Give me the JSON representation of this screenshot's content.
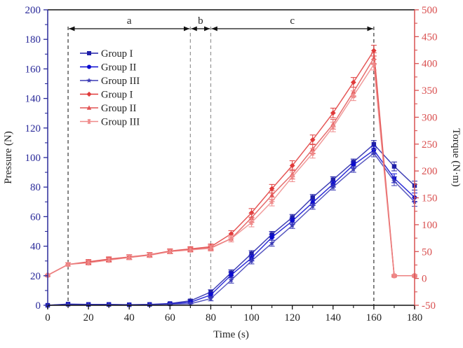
{
  "chart_data": {
    "type": "line",
    "title": "",
    "xlabel": "Time (s)",
    "ylabel_left": "Pressure (N)",
    "ylabel_right": "Torque (N·m)",
    "xlim": [
      0,
      180
    ],
    "xticks": [
      0,
      20,
      40,
      60,
      80,
      100,
      120,
      140,
      160,
      180
    ],
    "ylim_left": [
      0,
      200
    ],
    "yticks_left": [
      0,
      20,
      40,
      60,
      80,
      100,
      120,
      140,
      160,
      180,
      200
    ],
    "ylim_right": [
      -50,
      500
    ],
    "yticks_right": [
      -50,
      0,
      50,
      100,
      150,
      200,
      250,
      300,
      350,
      400,
      450,
      500
    ],
    "grid": false,
    "legend_position": "top-left",
    "colors": {
      "left_axis": "#2a2a9a",
      "right_axis": "#d95050",
      "vline": "#555555"
    },
    "phases": [
      {
        "label": "a",
        "from": 10,
        "to": 70
      },
      {
        "label": "b",
        "from": 70,
        "to": 80
      },
      {
        "label": "c",
        "from": 80,
        "to": 160
      }
    ],
    "vlines": [
      10,
      70,
      80,
      160
    ],
    "x": [
      0,
      10,
      20,
      30,
      40,
      50,
      60,
      70,
      80,
      90,
      100,
      110,
      120,
      130,
      140,
      150,
      160,
      170,
      180
    ],
    "series": [
      {
        "name": "Group I",
        "axis": "left",
        "quantity": "Pressure",
        "marker": "square",
        "color": "#1f1fa8",
        "values": [
          0,
          0.8,
          0.6,
          0.6,
          0.4,
          0.6,
          1.2,
          3,
          9,
          22,
          35,
          48,
          59.5,
          73,
          85,
          97,
          109,
          94,
          81
        ],
        "errors": [
          0.3,
          0.4,
          0.4,
          0.4,
          0.3,
          0.4,
          0.5,
          1,
          1.5,
          2,
          2,
          2,
          2,
          2,
          2,
          2,
          2.5,
          3,
          3
        ]
      },
      {
        "name": "Group II",
        "axis": "left",
        "quantity": "Pressure",
        "marker": "circle",
        "color": "#0a0ad0",
        "values": [
          0,
          0.6,
          0.5,
          0.5,
          0.3,
          0.5,
          1,
          2,
          7,
          20.5,
          32,
          46,
          57,
          69.5,
          82,
          95,
          105,
          86,
          73
        ],
        "errors": [
          0.3,
          0.4,
          0.4,
          0.4,
          0.3,
          0.4,
          0.5,
          1,
          1.5,
          2,
          2,
          2,
          2,
          2,
          2,
          2,
          2.5,
          3,
          3
        ]
      },
      {
        "name": "Group III",
        "axis": "left",
        "quantity": "Pressure",
        "marker": "star",
        "color": "#3b3bb5",
        "values": [
          0,
          0.5,
          0.4,
          0.4,
          0.3,
          0.4,
          0.8,
          1,
          4.5,
          17,
          30,
          42,
          54,
          67,
          80,
          92,
          103,
          84,
          70
        ],
        "errors": [
          0.3,
          0.4,
          0.4,
          0.4,
          0.3,
          0.4,
          0.5,
          1,
          1.5,
          2,
          2,
          2,
          2,
          2,
          2,
          2,
          2.5,
          3,
          3
        ]
      },
      {
        "name": "Group I",
        "axis": "right",
        "quantity": "Torque",
        "marker": "diamond",
        "color": "#e03a3a",
        "values": [
          6,
          26,
          31,
          36,
          40,
          44,
          51,
          55,
          59,
          83,
          122,
          167,
          210,
          258,
          308,
          365,
          424,
          5,
          5
        ],
        "errors": [
          2,
          3,
          4,
          4,
          4,
          4,
          4,
          4,
          5,
          6,
          8,
          8,
          9,
          9,
          9,
          9,
          10,
          2,
          2
        ]
      },
      {
        "name": "Group II",
        "axis": "right",
        "quantity": "Torque",
        "marker": "triangle",
        "color": "#e25555",
        "values": [
          6,
          26,
          30,
          35,
          39,
          44,
          50,
          54,
          57,
          74,
          113,
          155,
          194,
          241,
          287,
          347,
          410,
          5,
          5
        ],
        "errors": [
          2,
          3,
          4,
          4,
          4,
          4,
          4,
          4,
          5,
          6,
          8,
          8,
          9,
          9,
          9,
          9,
          10,
          2,
          2
        ]
      },
      {
        "name": "Group III",
        "axis": "right",
        "quantity": "Torque",
        "marker": "asterisk",
        "color": "#ef8a8a",
        "values": [
          6,
          26,
          29,
          34,
          39,
          43,
          50,
          53,
          56,
          74,
          104,
          143,
          189,
          233,
          282,
          340,
          398,
          5,
          5
        ],
        "errors": [
          2,
          3,
          4,
          4,
          4,
          4,
          4,
          4,
          5,
          6,
          8,
          8,
          9,
          9,
          9,
          9,
          10,
          2,
          2
        ]
      }
    ]
  }
}
